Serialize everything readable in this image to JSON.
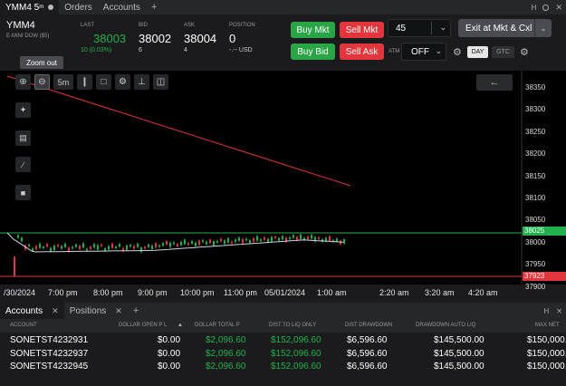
{
  "tabbar": {
    "tabs": [
      {
        "label": "YMM4 5",
        "sup": "m",
        "active": true
      },
      {
        "label": "Orders",
        "active": false
      },
      {
        "label": "Accounts",
        "active": false
      }
    ],
    "add": "+",
    "right": {
      "h": "H",
      "close": "✕"
    }
  },
  "quote": {
    "symbol": "YMM4",
    "description": "E-MINI DOW ($5)",
    "last_label": "LAST",
    "last_value": "38003",
    "last_change": "10 (0.03%)",
    "bid_label": "BID",
    "bid_value": "38002",
    "bid_size": "6",
    "ask_label": "ASK",
    "ask_value": "38004",
    "ask_size": "4",
    "position_label": "POSITION",
    "position_value": "0",
    "position_pnl": "-.-- USD"
  },
  "trade": {
    "buy_mkt": "Buy Mkt",
    "sell_mkt": "Sell Mkt",
    "buy_bid": "Buy Bid",
    "sell_ask": "Sell Ask",
    "quantity": "45",
    "atm_label": "ATM",
    "atm_value": "OFF",
    "day": "DAY",
    "gtc": "GTC",
    "exit": "Exit at Mkt & Cxl"
  },
  "chart": {
    "tooltip": "Zoom out",
    "interval_button": "5m",
    "price_ticks": [
      "38350",
      "38300",
      "38250",
      "38200",
      "38150",
      "38100",
      "38050",
      "38000",
      "37950",
      "37900"
    ],
    "last_price_label": "38025",
    "low_line_label": "37923",
    "time_ticks": [
      "/30/2024",
      "7:00 pm",
      "8:00 pm",
      "9:00 pm",
      "10:00 pm",
      "11:00 pm",
      "05/01/2024",
      "1:00 am",
      "2:20 am",
      "3:20 am",
      "4:20 am"
    ],
    "colors": {
      "up": "#22b14c",
      "down": "#e3353c",
      "trend": "#e3353c",
      "ma": "#c9d6e8"
    }
  },
  "accounts": {
    "tabs": [
      {
        "label": "Accounts",
        "close": "✕"
      },
      {
        "label": "Positions",
        "close": "✕"
      }
    ],
    "add": "+",
    "right": {
      "h": "H",
      "close": "✕"
    },
    "columns": [
      "ACCOUNT",
      "DOLLAR OPEN P L",
      "DOLLAR TOTAL P",
      "DIST TO LIQ ONLY",
      "DIST DRAWDOWN",
      "DRAWDOWN AUTO LIQ",
      "MAX NET"
    ],
    "rows": [
      {
        "account": "SONETST4232931",
        "open_pl": "$0.00",
        "total_pl": "$2,096.60",
        "dist_liq": "$152,096.60",
        "dist_dd": "$6,596.60",
        "dd_auto_liq": "$145,500.00",
        "max_net": "$150,000."
      },
      {
        "account": "SONETST4232937",
        "open_pl": "$0.00",
        "total_pl": "$2,096.60",
        "dist_liq": "$152,096.60",
        "dist_dd": "$6,596.60",
        "dd_auto_liq": "$145,500.00",
        "max_net": "$150,000."
      },
      {
        "account": "SONETST4232945",
        "open_pl": "$0.00",
        "total_pl": "$2,096.60",
        "dist_liq": "$152,096.60",
        "dist_dd": "$6,596.60",
        "dd_auto_liq": "$145,500.00",
        "max_net": "$150,000."
      }
    ]
  }
}
